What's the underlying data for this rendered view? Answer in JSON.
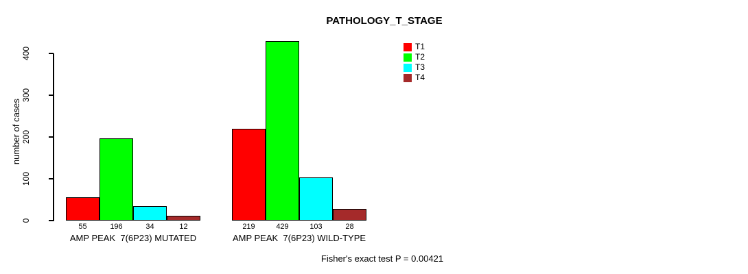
{
  "title": "PATHOLOGY_T_STAGE",
  "ylabel": "number of cases",
  "footer": "Fisher's exact test P = 0.00421",
  "legend": {
    "position": "top-right",
    "entries": [
      {
        "label": "T1",
        "color": "#FF0000"
      },
      {
        "label": "T2",
        "color": "#00FF00"
      },
      {
        "label": "T3",
        "color": "#00FFFF"
      },
      {
        "label": "T4",
        "color": "#A52A2A"
      }
    ]
  },
  "chart_data": {
    "type": "bar",
    "title": "PATHOLOGY_T_STAGE",
    "xlabel": "",
    "ylabel": "number of cases",
    "ylim": [
      0,
      400
    ],
    "yticks": [
      0,
      100,
      200,
      300,
      400
    ],
    "grid": false,
    "bar_border_color": "#000000",
    "series": [
      {
        "name": "T1",
        "color": "#FF0000",
        "values": [
          55,
          219
        ]
      },
      {
        "name": "T2",
        "color": "#00FF00",
        "values": [
          196,
          429
        ]
      },
      {
        "name": "T3",
        "color": "#00FFFF",
        "values": [
          34,
          103
        ]
      },
      {
        "name": "T4",
        "color": "#A52A2A",
        "values": [
          12,
          28
        ]
      }
    ],
    "groups": [
      {
        "label": "AMP PEAK  7(6P23) MUTATED",
        "values": [
          55,
          196,
          34,
          12
        ]
      },
      {
        "label": "AMP PEAK  7(6P23) WILD-TYPE",
        "values": [
          219,
          429,
          103,
          28
        ]
      }
    ],
    "annotation": "Fisher's exact test P = 0.00421"
  }
}
